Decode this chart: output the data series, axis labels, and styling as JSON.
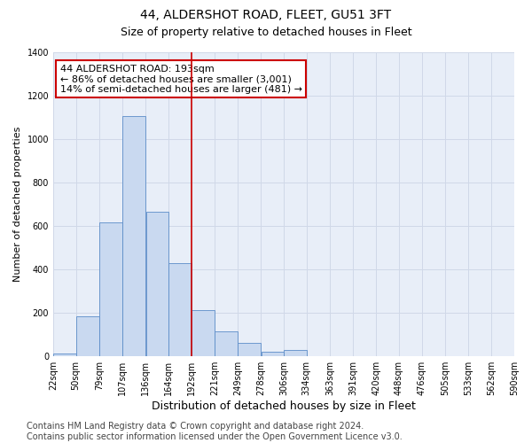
{
  "title": "44, ALDERSHOT ROAD, FLEET, GU51 3FT",
  "subtitle": "Size of property relative to detached houses in Fleet",
  "xlabel": "Distribution of detached houses by size in Fleet",
  "ylabel": "Number of detached properties",
  "bar_color": "#c9d9f0",
  "bar_edge_color": "#5b8cc8",
  "grid_color": "#d0d8e8",
  "background_color": "#e8eef8",
  "property_line_x": 192,
  "property_line_color": "#cc0000",
  "annotation_text": "44 ALDERSHOT ROAD: 193sqm\n← 86% of detached houses are smaller (3,001)\n14% of semi-detached houses are larger (481) →",
  "annotation_box_color": "#cc0000",
  "bins": [
    22,
    50,
    79,
    107,
    136,
    164,
    192,
    221,
    249,
    278,
    306,
    334,
    363,
    391,
    420,
    448,
    476,
    505,
    533,
    562,
    590
  ],
  "bar_heights": [
    15,
    185,
    615,
    1105,
    665,
    430,
    215,
    115,
    60,
    20,
    30,
    0,
    0,
    0,
    0,
    0,
    0,
    0,
    0,
    0
  ],
  "ylim": [
    0,
    1400
  ],
  "yticks": [
    0,
    200,
    400,
    600,
    800,
    1000,
    1200,
    1400
  ],
  "footer_text": "Contains HM Land Registry data © Crown copyright and database right 2024.\nContains public sector information licensed under the Open Government Licence v3.0.",
  "title_fontsize": 10,
  "subtitle_fontsize": 9,
  "xlabel_fontsize": 9,
  "ylabel_fontsize": 8,
  "tick_fontsize": 7,
  "footer_fontsize": 7,
  "annotation_fontsize": 8
}
